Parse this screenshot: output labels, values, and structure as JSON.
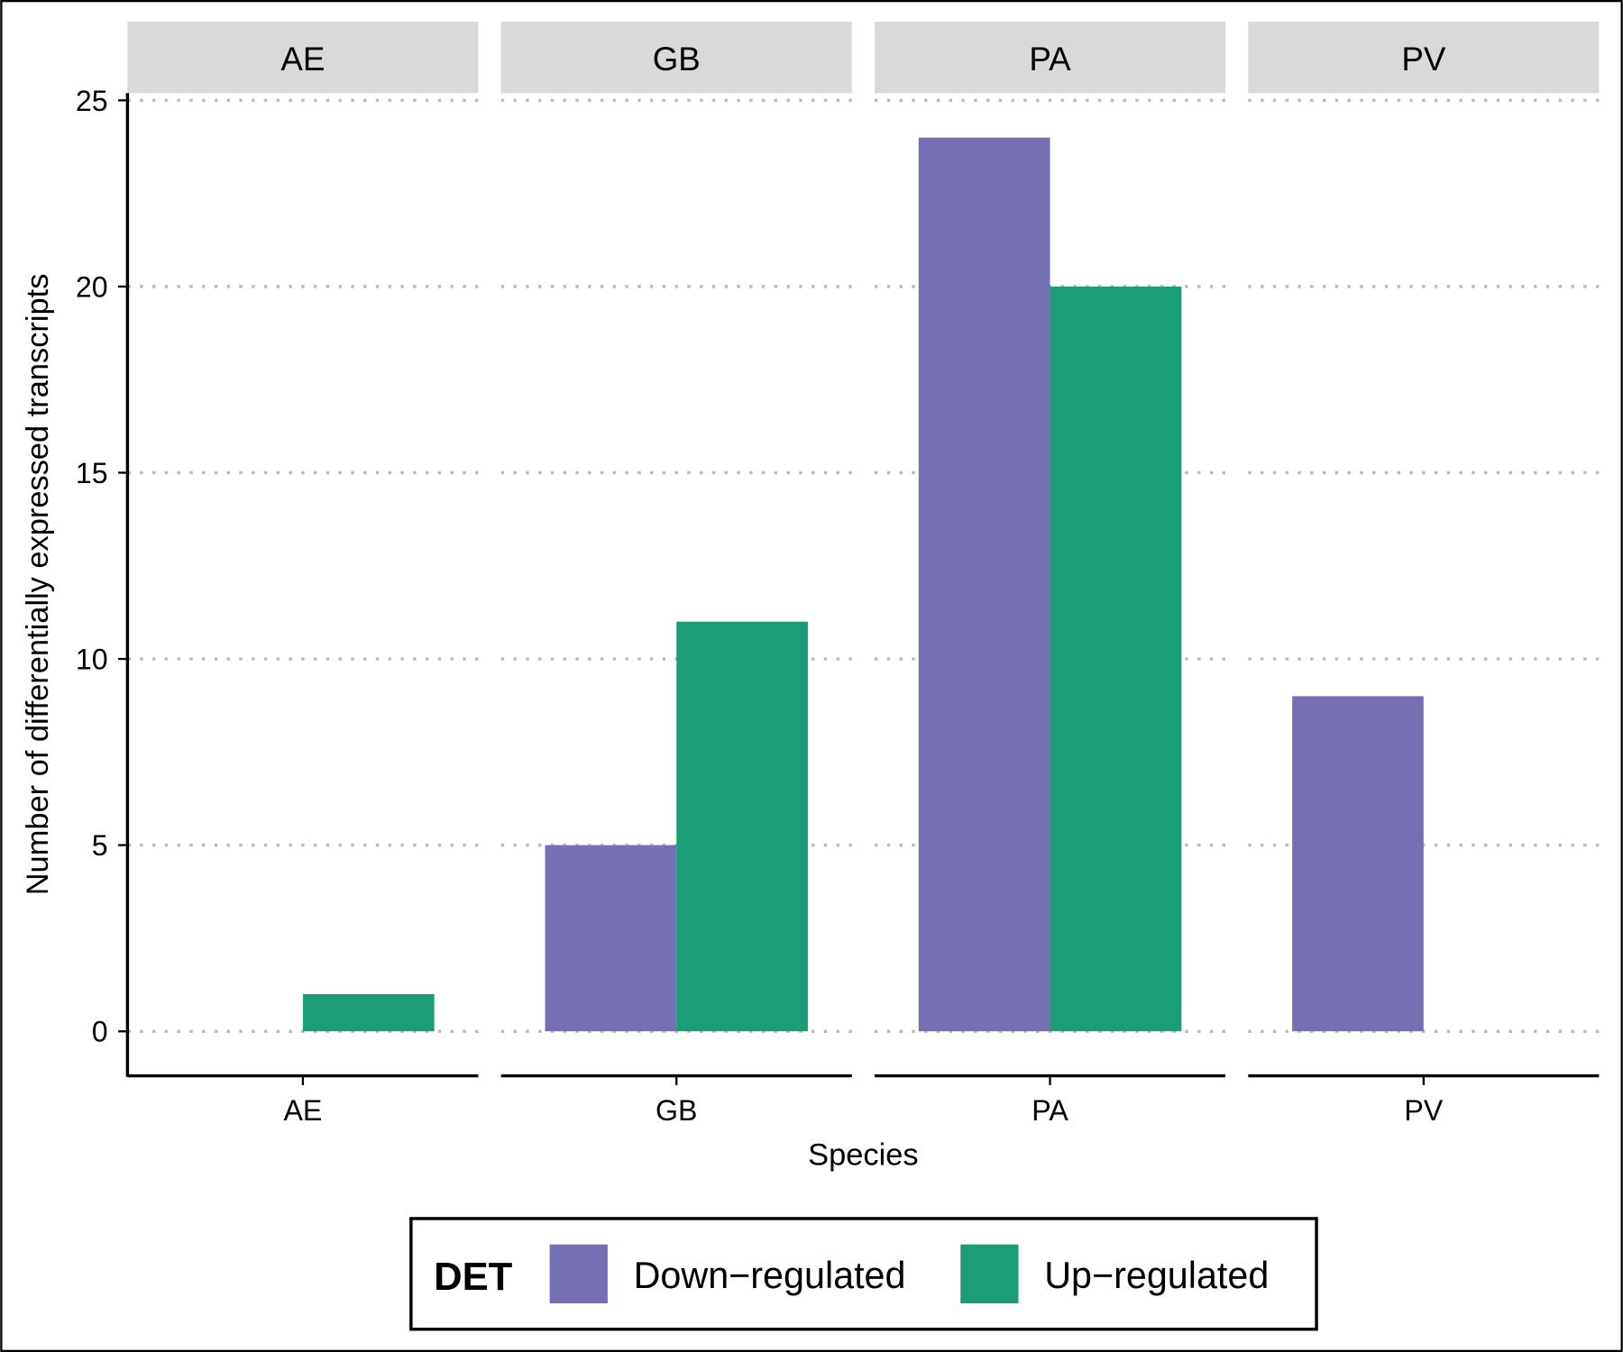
{
  "chart_data": {
    "type": "bar",
    "facets": [
      "AE",
      "GB",
      "PA",
      "PV"
    ],
    "categories": [
      "AE",
      "GB",
      "PA",
      "PV"
    ],
    "series": [
      {
        "name": "Down-regulated",
        "color": "#7570B3",
        "values": [
          0,
          5,
          24,
          9
        ]
      },
      {
        "name": "Up-regulated",
        "color": "#1B9E77",
        "values": [
          1,
          11,
          20,
          0
        ]
      }
    ],
    "xlabel": "Species",
    "ylabel": "Number of differentially expressed transcripts",
    "ylim": [
      0,
      25
    ],
    "yticks": [
      0,
      5,
      10,
      15,
      20,
      25
    ],
    "grid": "horizontal dotted",
    "legend": {
      "title": "DET",
      "position": "bottom",
      "labels": [
        "Down−regulated",
        "Up−regulated"
      ]
    }
  }
}
